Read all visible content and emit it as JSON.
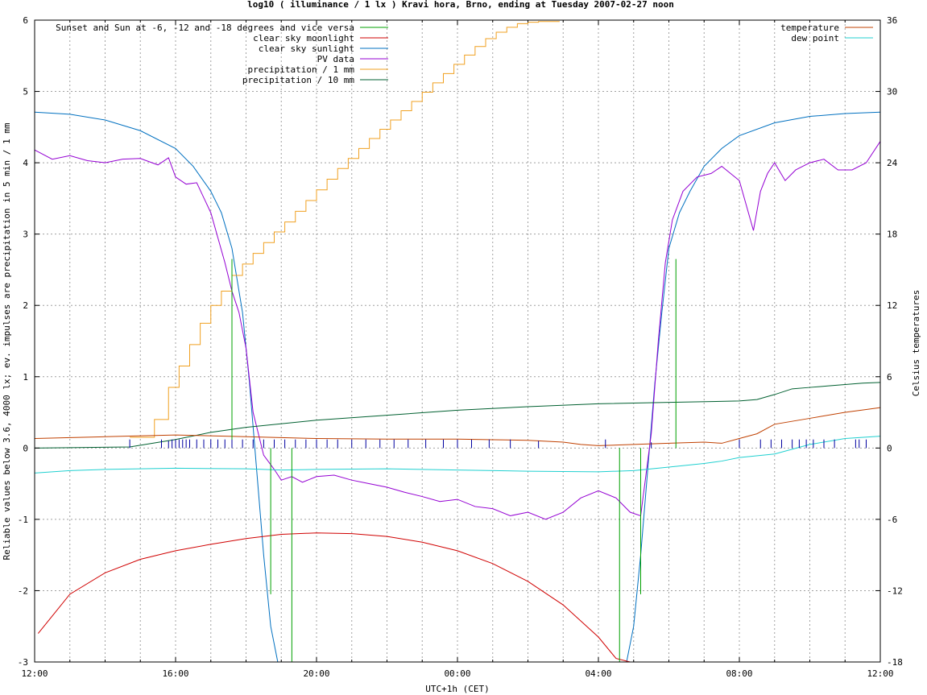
{
  "chart_data": {
    "type": "line",
    "title": "log10 ( illuminance / 1 lx ) Kravi hora, Brno, ending at Tuesday 2007-02-27 noon",
    "xlabel": "UTC+1h (CET)",
    "ylabel": "Reliable values below 3.6, 4000 lx; ev. impulses are precipitation in 5 min / 1 mm",
    "y2label": "Celsius temperatures",
    "xlim": [
      0,
      24
    ],
    "ylim": [
      -3,
      6
    ],
    "y2lim": [
      -18,
      36
    ],
    "x_ticks": [
      {
        "v": 0,
        "label": "12:00"
      },
      {
        "v": 4,
        "label": "16:00"
      },
      {
        "v": 8,
        "label": "20:00"
      },
      {
        "v": 12,
        "label": "00:00"
      },
      {
        "v": 16,
        "label": "04:00"
      },
      {
        "v": 20,
        "label": "08:00"
      },
      {
        "v": 24,
        "label": "12:00"
      }
    ],
    "y_ticks": [
      "-3",
      "-2",
      "-1",
      "0",
      "1",
      "2",
      "3",
      "4",
      "5",
      "6"
    ],
    "y2_ticks": [
      "-18",
      "-12",
      "-6",
      "0",
      "6",
      "12",
      "18",
      "24",
      "30",
      "36"
    ],
    "grid": true,
    "legend_left": [
      {
        "name": "Sunset and Sun at -6, -12 and -18 degrees and vice versa",
        "color": "#00a000"
      },
      {
        "name": "clear sky moonlight",
        "color": "#d00000"
      },
      {
        "name": "clear sky sunlight",
        "color": "#0070c0"
      },
      {
        "name": "PV data",
        "color": "#9400d3"
      },
      {
        "name": "precipitation / 1 mm",
        "color": "#f0a020"
      },
      {
        "name": "precipitation / 10 mm",
        "color": "#006030"
      }
    ],
    "legend_right": [
      {
        "name": "temperature",
        "color": "#c04000"
      },
      {
        "name": "dew point",
        "color": "#20d0d0"
      }
    ],
    "series": [
      {
        "name": "clear sky sunlight",
        "color": "#0070c0",
        "axis": "y",
        "x": [
          0,
          1,
          2,
          3,
          4,
          4.5,
          5,
          5.3,
          5.6,
          5.9,
          6.1,
          6.3,
          6.5,
          6.7,
          6.9,
          7.1,
          7.3,
          16.6,
          16.8,
          17.0,
          17.2,
          17.4,
          17.6,
          17.8,
          18.0,
          18.3,
          18.6,
          19.0,
          19.5,
          20,
          21,
          22,
          23,
          24
        ],
        "y": [
          4.71,
          4.68,
          4.6,
          4.45,
          4.2,
          3.95,
          3.6,
          3.3,
          2.8,
          1.9,
          0.9,
          -0.3,
          -1.5,
          -2.5,
          -3.0,
          -3.0,
          -3.0,
          -3.0,
          -3.0,
          -2.5,
          -1.5,
          -0.3,
          0.9,
          1.9,
          2.8,
          3.3,
          3.6,
          3.95,
          4.2,
          4.38,
          4.56,
          4.65,
          4.69,
          4.71
        ]
      },
      {
        "name": "clear sky moonlight",
        "color": "#d00000",
        "axis": "y",
        "x": [
          0.1,
          1,
          2,
          3,
          4,
          5,
          6,
          7,
          8,
          9,
          10,
          11,
          12,
          13,
          14,
          15,
          16,
          16.5,
          16.9
        ],
        "y": [
          -2.6,
          -2.05,
          -1.75,
          -1.56,
          -1.44,
          -1.35,
          -1.27,
          -1.21,
          -1.19,
          -1.2,
          -1.24,
          -1.32,
          -1.44,
          -1.62,
          -1.87,
          -2.2,
          -2.65,
          -2.95,
          -3.0
        ]
      },
      {
        "name": "PV data",
        "color": "#9400d3",
        "axis": "y",
        "x": [
          0,
          0.5,
          1,
          1.5,
          2,
          2.5,
          3,
          3.5,
          3.8,
          4,
          4.3,
          4.6,
          5,
          5.2,
          5.4,
          5.6,
          5.8,
          6.0,
          6.2,
          6.5,
          6.8,
          7.0,
          7.3,
          7.6,
          8,
          8.5,
          9,
          9.5,
          10,
          10.5,
          11,
          11.5,
          12,
          12.5,
          13,
          13.5,
          14,
          14.5,
          15,
          15.5,
          16,
          16.5,
          16.9,
          17.2,
          17.5,
          17.7,
          17.9,
          18.1,
          18.4,
          18.8,
          19.2,
          19.5,
          20,
          20.4,
          20.6,
          20.8,
          21,
          21.3,
          21.6,
          22,
          22.4,
          22.8,
          23.2,
          23.6,
          24
        ],
        "y": [
          4.18,
          4.05,
          4.1,
          4.03,
          4.0,
          4.05,
          4.06,
          3.97,
          4.07,
          3.8,
          3.7,
          3.72,
          3.3,
          2.95,
          2.6,
          2.2,
          1.9,
          1.4,
          0.5,
          -0.1,
          -0.3,
          -0.45,
          -0.4,
          -0.48,
          -0.4,
          -0.38,
          -0.45,
          -0.5,
          -0.55,
          -0.62,
          -0.68,
          -0.75,
          -0.72,
          -0.82,
          -0.85,
          -0.95,
          -0.9,
          -1.0,
          -0.9,
          -0.7,
          -0.6,
          -0.7,
          -0.9,
          -0.95,
          0.2,
          1.5,
          2.6,
          3.2,
          3.6,
          3.8,
          3.85,
          3.95,
          3.75,
          3.05,
          3.6,
          3.85,
          4.0,
          3.75,
          3.9,
          4.0,
          4.05,
          3.9,
          3.9,
          4.0,
          4.3
        ]
      },
      {
        "name": "precipitation / 1 mm",
        "color": "#f0a020",
        "axis": "y",
        "step": true,
        "x": [
          2.7,
          3.4,
          3.8,
          4.1,
          4.4,
          4.7,
          5.0,
          5.3,
          5.6,
          5.9,
          6.2,
          6.5,
          6.8,
          7.1,
          7.4,
          7.7,
          8.0,
          8.3,
          8.6,
          8.9,
          9.2,
          9.5,
          9.8,
          10.1,
          10.4,
          10.7,
          11.0,
          11.3,
          11.6,
          11.9,
          12.2,
          12.5,
          12.8,
          13.1,
          13.4,
          13.7,
          14.0,
          14.3,
          14.6,
          14.9
        ],
        "y": [
          0.15,
          0.4,
          0.85,
          1.15,
          1.45,
          1.75,
          2.0,
          2.2,
          2.42,
          2.58,
          2.73,
          2.88,
          3.03,
          3.17,
          3.32,
          3.47,
          3.62,
          3.77,
          3.92,
          4.06,
          4.2,
          4.34,
          4.47,
          4.6,
          4.73,
          4.86,
          4.99,
          5.12,
          5.25,
          5.38,
          5.51,
          5.63,
          5.74,
          5.83,
          5.9,
          5.95,
          5.97,
          5.98,
          5.98,
          5.98
        ]
      },
      {
        "name": "precipitation / 10 mm",
        "color": "#006030",
        "axis": "y",
        "x": [
          0,
          2.7,
          4,
          5,
          6,
          8,
          10,
          12,
          14,
          16,
          18,
          20,
          20.5,
          21,
          21.5,
          22,
          22.5,
          23,
          23.5,
          24
        ],
        "y": [
          0.0,
          0.015,
          0.12,
          0.22,
          0.29,
          0.39,
          0.46,
          0.53,
          0.58,
          0.62,
          0.64,
          0.66,
          0.68,
          0.75,
          0.83,
          0.85,
          0.87,
          0.89,
          0.91,
          0.92
        ]
      },
      {
        "name": "temperature",
        "color": "#c04000",
        "axis": "y2",
        "x": [
          0,
          2,
          4,
          6,
          8,
          10,
          12,
          13,
          14,
          15,
          15.5,
          16,
          17,
          18,
          19,
          19.5,
          20,
          20.5,
          21,
          22,
          23,
          24
        ],
        "y": [
          0.8,
          0.95,
          1.1,
          0.95,
          0.8,
          0.75,
          0.75,
          0.7,
          0.65,
          0.5,
          0.3,
          0.2,
          0.3,
          0.4,
          0.5,
          0.4,
          0.8,
          1.2,
          2.0,
          2.5,
          3.0,
          3.4
        ]
      },
      {
        "name": "dew point",
        "color": "#20d0d0",
        "axis": "y2",
        "x": [
          0,
          1,
          2,
          4,
          6,
          7,
          8,
          10,
          12,
          14,
          16,
          17,
          18,
          19,
          19.5,
          20,
          21,
          22,
          23,
          24
        ],
        "y": [
          -2.1,
          -1.9,
          -1.8,
          -1.7,
          -1.75,
          -1.85,
          -1.8,
          -1.75,
          -1.85,
          -1.95,
          -2.0,
          -1.9,
          -1.6,
          -1.3,
          -1.1,
          -0.8,
          -0.5,
          0.3,
          0.8,
          1.0
        ]
      },
      {
        "name": "sun events",
        "color": "#00a000",
        "axis": "y",
        "type": "impulse",
        "x": [
          5.6,
          6.7,
          7.3,
          16.6,
          17.2,
          18.2
        ],
        "y": [
          2.65,
          -2.05,
          -3.0,
          -3.0,
          -2.05,
          2.65
        ]
      },
      {
        "name": "precipitation impulses",
        "color": "#0000a0",
        "axis": "y",
        "type": "impulse",
        "x": [
          2.7,
          3.6,
          3.8,
          3.9,
          4.0,
          4.1,
          4.2,
          4.3,
          4.4,
          4.6,
          4.8,
          5.0,
          5.2,
          5.4,
          5.6,
          5.9,
          6.2,
          6.5,
          6.8,
          7.1,
          7.4,
          7.7,
          8.0,
          8.3,
          8.6,
          9.0,
          9.4,
          9.8,
          10.2,
          10.6,
          11.1,
          11.6,
          12.0,
          12.4,
          12.9,
          13.5,
          14.3,
          16.2,
          17.5,
          20.0,
          20.6,
          20.9,
          21.2,
          21.5,
          21.7,
          21.9,
          22.1,
          22.4,
          22.7,
          23.3,
          23.4,
          23.6
        ],
        "y": [
          0.12,
          0.12,
          0.1,
          0.12,
          0.12,
          0.12,
          0.12,
          0.12,
          0.12,
          0.12,
          0.12,
          0.12,
          0.12,
          0.12,
          0.12,
          0.12,
          0.12,
          0.12,
          0.12,
          0.12,
          0.12,
          0.12,
          0.12,
          0.12,
          0.12,
          0.12,
          0.12,
          0.12,
          0.12,
          0.12,
          0.12,
          0.12,
          0.12,
          0.12,
          0.12,
          0.12,
          0.1,
          0.12,
          0.08,
          0.12,
          0.12,
          0.12,
          0.12,
          0.12,
          0.12,
          0.12,
          0.12,
          0.12,
          0.12,
          0.12,
          0.12,
          0.12
        ]
      }
    ]
  }
}
